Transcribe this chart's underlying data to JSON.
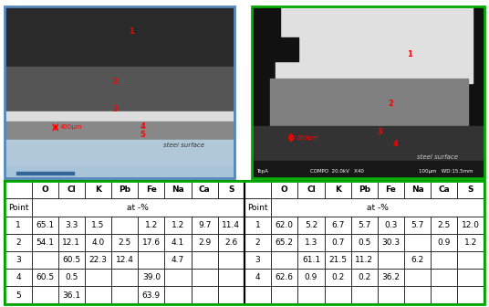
{
  "table1_headers": [
    "",
    "O",
    "Cl",
    "K",
    "Pb",
    "Fe",
    "Na",
    "Ca",
    "S"
  ],
  "table1_subheader": [
    "Point",
    "",
    "",
    "at -%",
    "",
    "",
    "",
    "",
    ""
  ],
  "table1_rows": [
    [
      "1",
      "65.1",
      "3.3",
      "1.5",
      "",
      "1.2",
      "1.2",
      "9.7",
      "11.4"
    ],
    [
      "2",
      "54.1",
      "12.1",
      "4.0",
      "2.5",
      "17.6",
      "4.1",
      "2.9",
      "2.6"
    ],
    [
      "3",
      "",
      "60.5",
      "22.3",
      "12.4",
      "",
      "4.7",
      "",
      ""
    ],
    [
      "4",
      "60.5",
      "0.5",
      "",
      "",
      "39.0",
      "",
      "",
      ""
    ],
    [
      "5",
      "",
      "36.1",
      "",
      "",
      "63.9",
      "",
      "",
      ""
    ]
  ],
  "table2_headers": [
    "",
    "O",
    "Cl",
    "K",
    "Pb",
    "Fe",
    "Na",
    "Ca",
    "S"
  ],
  "table2_subheader": [
    "Point",
    "",
    "",
    "at -%",
    "",
    "",
    "",
    "",
    ""
  ],
  "table2_rows": [
    [
      "1",
      "62.0",
      "5.2",
      "6.7",
      "5.7",
      "0.3",
      "5.7",
      "2.5",
      "12.0"
    ],
    [
      "2",
      "65.2",
      "1.3",
      "0.7",
      "0.5",
      "30.3",
      "",
      "0.9",
      "1.2"
    ],
    [
      "3",
      "",
      "61.1",
      "21.5",
      "11.2",
      "",
      "6.2",
      "",
      ""
    ],
    [
      "4",
      "62.6",
      "0.9",
      "0.2",
      "0.2",
      "36.2",
      "",
      "",
      ""
    ]
  ],
  "border_color": "#00a000",
  "table_border": "#000000",
  "bg_color": "#ffffff",
  "img_border_left": "#6699cc",
  "img_border_right": "#00cc00"
}
